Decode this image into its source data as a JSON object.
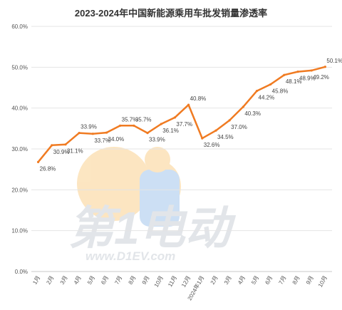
{
  "chart_data": {
    "type": "line",
    "title": "2023-2024年中国新能源乘用车批发销量渗透率",
    "xlabel": "",
    "ylabel": "",
    "categories": [
      "1月",
      "2月",
      "3月",
      "4月",
      "5月",
      "6月",
      "7月",
      "8月",
      "9月",
      "10月",
      "11月",
      "12月",
      "2024年1月",
      "2月",
      "3月",
      "4月",
      "5月",
      "6月",
      "7月",
      "8月",
      "9月",
      "10月"
    ],
    "values": [
      26.8,
      30.9,
      31.1,
      33.9,
      33.7,
      34.0,
      35.7,
      35.7,
      33.9,
      36.1,
      37.7,
      40.8,
      32.6,
      34.5,
      37.0,
      40.3,
      44.2,
      45.8,
      48.1,
      48.9,
      49.2,
      50.1
    ],
    "data_labels": [
      "26.8%",
      "30.9%",
      "31.1%",
      "33.9%",
      "33.7%",
      "34.0%",
      "35.7%",
      "35.7%",
      "33.9%",
      "36.1%",
      "37.7%",
      "40.8%",
      "32.6%",
      "34.5%",
      "37.0%",
      "40.3%",
      "44.2%",
      "45.8%",
      "48.1%",
      "48.9%",
      "49.2%",
      "50.1%"
    ],
    "y_ticks": [
      "0.0%",
      "10.0%",
      "20.0%",
      "30.0%",
      "40.0%",
      "50.0%",
      "60.0%"
    ],
    "ylim": [
      0,
      60
    ],
    "grid": true,
    "legend": "none",
    "line_color": "#F07B22"
  },
  "watermark": {
    "brand": "第1电动",
    "url": "www.D1EV.com"
  }
}
